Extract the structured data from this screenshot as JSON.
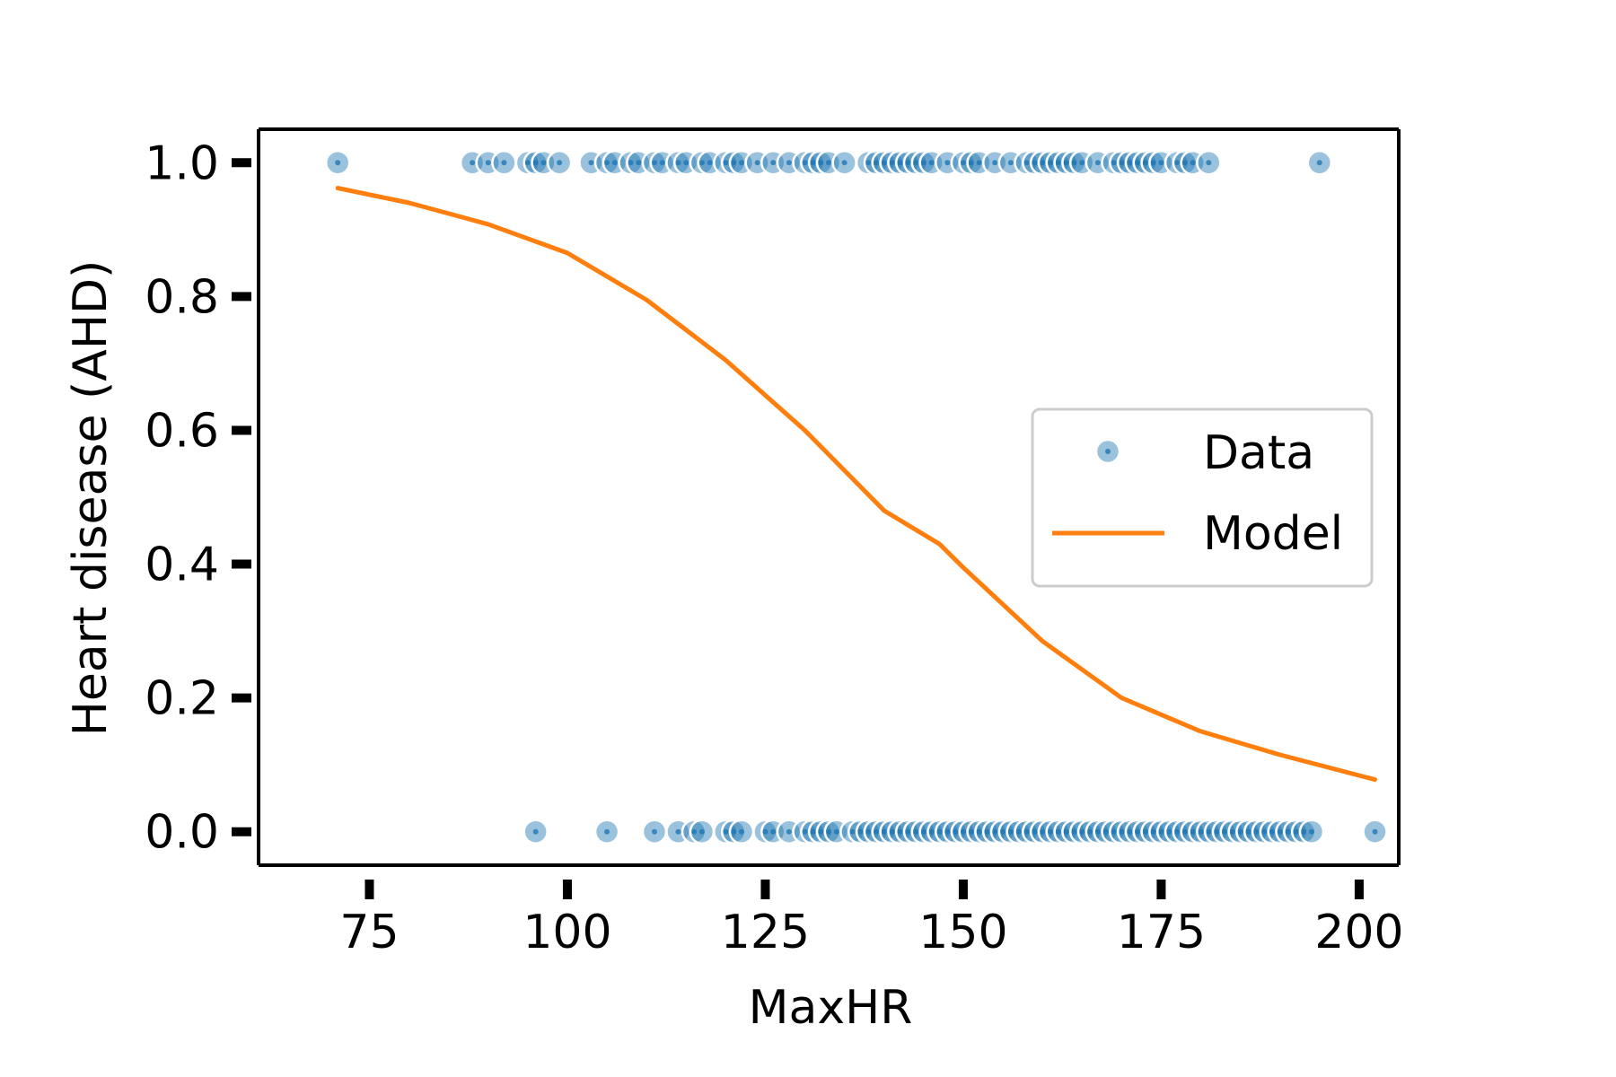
{
  "chart_data": {
    "type": "scatter",
    "xlabel": "MaxHR",
    "ylabel": "Heart disease (AHD)",
    "xlim": [
      61,
      205
    ],
    "ylim": [
      -0.05,
      1.05
    ],
    "x_ticks": [
      75,
      100,
      125,
      150,
      175,
      200
    ],
    "x_tick_labels": [
      "75",
      "100",
      "125",
      "150",
      "175",
      "200"
    ],
    "y_ticks": [
      0.0,
      0.2,
      0.4,
      0.6,
      0.8,
      1.0
    ],
    "y_tick_labels": [
      "0.0",
      "0.2",
      "0.4",
      "0.6",
      "0.8",
      "1.0"
    ],
    "grid": false,
    "legend_position": "center-right",
    "series": [
      {
        "name": "Data",
        "kind": "scatter",
        "color": "#1f77b4",
        "points": [
          [
            71,
            1
          ],
          [
            88,
            1
          ],
          [
            90,
            1
          ],
          [
            92,
            1
          ],
          [
            95,
            1
          ],
          [
            96,
            1
          ],
          [
            97,
            1
          ],
          [
            99,
            1
          ],
          [
            103,
            1
          ],
          [
            105,
            1
          ],
          [
            106,
            1
          ],
          [
            108,
            1
          ],
          [
            109,
            1
          ],
          [
            111,
            1
          ],
          [
            112,
            1
          ],
          [
            114,
            1
          ],
          [
            115,
            1
          ],
          [
            117,
            1
          ],
          [
            118,
            1
          ],
          [
            120,
            1
          ],
          [
            121,
            1
          ],
          [
            122,
            1
          ],
          [
            124,
            1
          ],
          [
            126,
            1
          ],
          [
            128,
            1
          ],
          [
            130,
            1
          ],
          [
            131,
            1
          ],
          [
            132,
            1
          ],
          [
            133,
            1
          ],
          [
            135,
            1
          ],
          [
            138,
            1
          ],
          [
            139,
            1
          ],
          [
            140,
            1
          ],
          [
            141,
            1
          ],
          [
            142,
            1
          ],
          [
            143,
            1
          ],
          [
            144,
            1
          ],
          [
            145,
            1
          ],
          [
            146,
            1
          ],
          [
            148,
            1
          ],
          [
            150,
            1
          ],
          [
            151,
            1
          ],
          [
            152,
            1
          ],
          [
            154,
            1
          ],
          [
            156,
            1
          ],
          [
            158,
            1
          ],
          [
            159,
            1
          ],
          [
            160,
            1
          ],
          [
            161,
            1
          ],
          [
            162,
            1
          ],
          [
            163,
            1
          ],
          [
            164,
            1
          ],
          [
            165,
            1
          ],
          [
            167,
            1
          ],
          [
            169,
            1
          ],
          [
            170,
            1
          ],
          [
            171,
            1
          ],
          [
            172,
            1
          ],
          [
            173,
            1
          ],
          [
            174,
            1
          ],
          [
            175,
            1
          ],
          [
            177,
            1
          ],
          [
            178,
            1
          ],
          [
            179,
            1
          ],
          [
            181,
            1
          ],
          [
            195,
            1
          ],
          [
            96,
            0
          ],
          [
            105,
            0
          ],
          [
            111,
            0
          ],
          [
            114,
            0
          ],
          [
            116,
            0
          ],
          [
            117,
            0
          ],
          [
            120,
            0
          ],
          [
            121,
            0
          ],
          [
            122,
            0
          ],
          [
            125,
            0
          ],
          [
            126,
            0
          ],
          [
            128,
            0
          ],
          [
            130,
            0
          ],
          [
            131,
            0
          ],
          [
            132,
            0
          ],
          [
            133,
            0
          ],
          [
            134,
            0
          ],
          [
            136,
            0
          ],
          [
            137,
            0
          ],
          [
            138,
            0
          ],
          [
            139,
            0
          ],
          [
            140,
            0
          ],
          [
            141,
            0
          ],
          [
            142,
            0
          ],
          [
            143,
            0
          ],
          [
            144,
            0
          ],
          [
            145,
            0
          ],
          [
            146,
            0
          ],
          [
            147,
            0
          ],
          [
            148,
            0
          ],
          [
            149,
            0
          ],
          [
            150,
            0
          ],
          [
            151,
            0
          ],
          [
            152,
            0
          ],
          [
            153,
            0
          ],
          [
            154,
            0
          ],
          [
            155,
            0
          ],
          [
            156,
            0
          ],
          [
            157,
            0
          ],
          [
            158,
            0
          ],
          [
            159,
            0
          ],
          [
            160,
            0
          ],
          [
            161,
            0
          ],
          [
            162,
            0
          ],
          [
            163,
            0
          ],
          [
            164,
            0
          ],
          [
            165,
            0
          ],
          [
            166,
            0
          ],
          [
            167,
            0
          ],
          [
            168,
            0
          ],
          [
            169,
            0
          ],
          [
            170,
            0
          ],
          [
            171,
            0
          ],
          [
            172,
            0
          ],
          [
            173,
            0
          ],
          [
            174,
            0
          ],
          [
            175,
            0
          ],
          [
            176,
            0
          ],
          [
            177,
            0
          ],
          [
            178,
            0
          ],
          [
            179,
            0
          ],
          [
            180,
            0
          ],
          [
            181,
            0
          ],
          [
            182,
            0
          ],
          [
            183,
            0
          ],
          [
            184,
            0
          ],
          [
            185,
            0
          ],
          [
            186,
            0
          ],
          [
            187,
            0
          ],
          [
            188,
            0
          ],
          [
            189,
            0
          ],
          [
            190,
            0
          ],
          [
            191,
            0
          ],
          [
            192,
            0
          ],
          [
            193,
            0
          ],
          [
            194,
            0
          ],
          [
            202,
            0
          ]
        ]
      },
      {
        "name": "Model",
        "kind": "line",
        "color": "#ff7f0e",
        "points": [
          [
            71,
            0.962
          ],
          [
            80,
            0.94
          ],
          [
            90,
            0.908
          ],
          [
            100,
            0.865
          ],
          [
            110,
            0.795
          ],
          [
            120,
            0.705
          ],
          [
            130,
            0.6
          ],
          [
            140,
            0.48
          ],
          [
            147,
            0.43
          ],
          [
            150,
            0.395
          ],
          [
            160,
            0.285
          ],
          [
            170,
            0.2
          ],
          [
            180,
            0.15
          ],
          [
            190,
            0.115
          ],
          [
            202,
            0.078
          ]
        ]
      }
    ]
  }
}
